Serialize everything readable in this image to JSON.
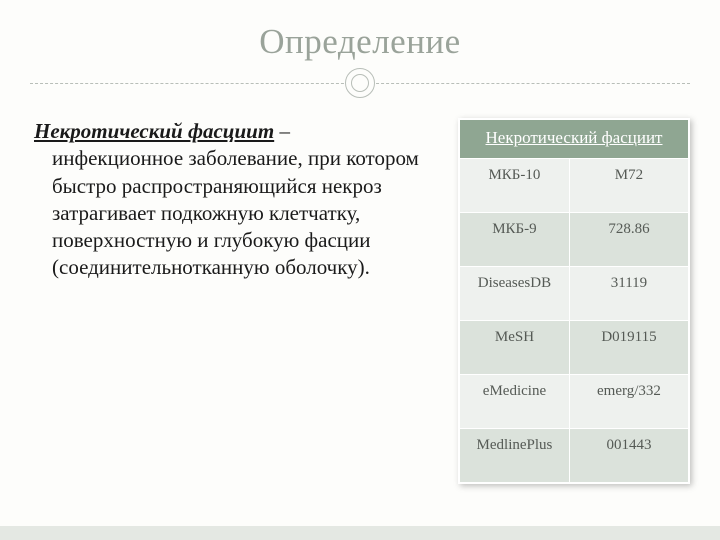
{
  "slide": {
    "title": "Определение",
    "term": "Некротический фасциит",
    "dash": " –",
    "definition_rest": "инфекционное заболевание, при котором быстро распространяющийся некроз затрагивает подкожную клетчатку, поверхностную и глубокую фасции (соединительнотканную оболочку)."
  },
  "table": {
    "header": "Некротический фасциит",
    "rows": [
      {
        "key": "МКБ-10",
        "value": "M72"
      },
      {
        "key": "МКБ-9",
        "value": "728.86"
      },
      {
        "key": "DiseasesDB",
        "value": "31119"
      },
      {
        "key": "MeSH",
        "value": "D019115"
      },
      {
        "key": "eMedicine",
        "value": "emerg/332"
      },
      {
        "key": "MedlinePlus",
        "value": "001443"
      }
    ]
  },
  "colors": {
    "title_color": "#9aa39a",
    "accent": "#8fa692",
    "row_odd": "#eef1ee",
    "row_even": "#dbe2db",
    "border": "#ffffff"
  }
}
